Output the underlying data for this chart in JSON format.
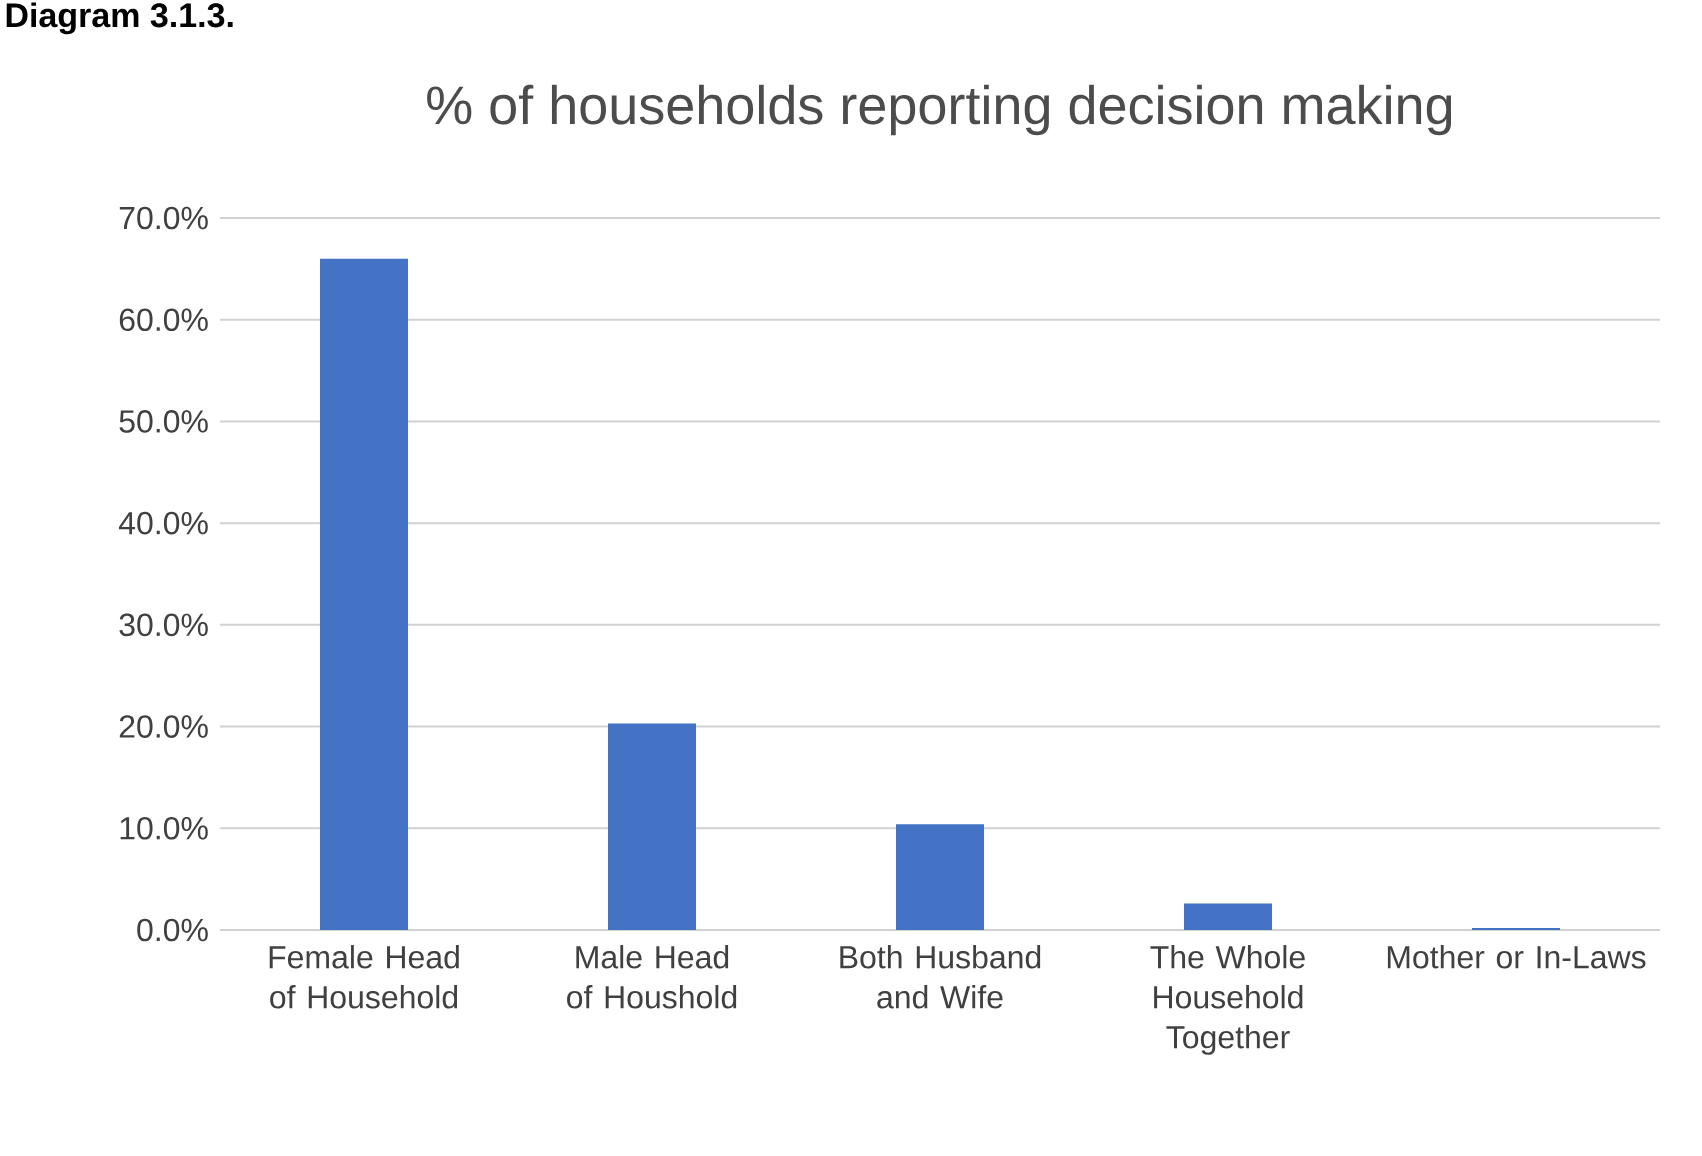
{
  "chart_data": {
    "type": "bar",
    "title": "% of households reporting decision making",
    "annotations": [
      "Diagram 3.1.3."
    ],
    "categories": [
      "Female Head of Household",
      "Male Head of Houshold",
      "Both Husband and Wife",
      "The Whole Household Together",
      "Mother or In-Laws"
    ],
    "values": [
      66.0,
      20.3,
      10.4,
      2.6,
      0.2
    ],
    "color": "#4472c4",
    "ylim": [
      0,
      70
    ],
    "yticks": [
      {
        "value": 0,
        "label": "0.0%"
      },
      {
        "value": 10,
        "label": "10.0%"
      },
      {
        "value": 20,
        "label": "20.0%"
      },
      {
        "value": 30,
        "label": "30.0%"
      },
      {
        "value": 40,
        "label": "40.0%"
      },
      {
        "value": 50,
        "label": "50.0%"
      },
      {
        "value": 60,
        "label": "60.0%"
      },
      {
        "value": 70,
        "label": "70.0%"
      }
    ],
    "grid": "y"
  }
}
